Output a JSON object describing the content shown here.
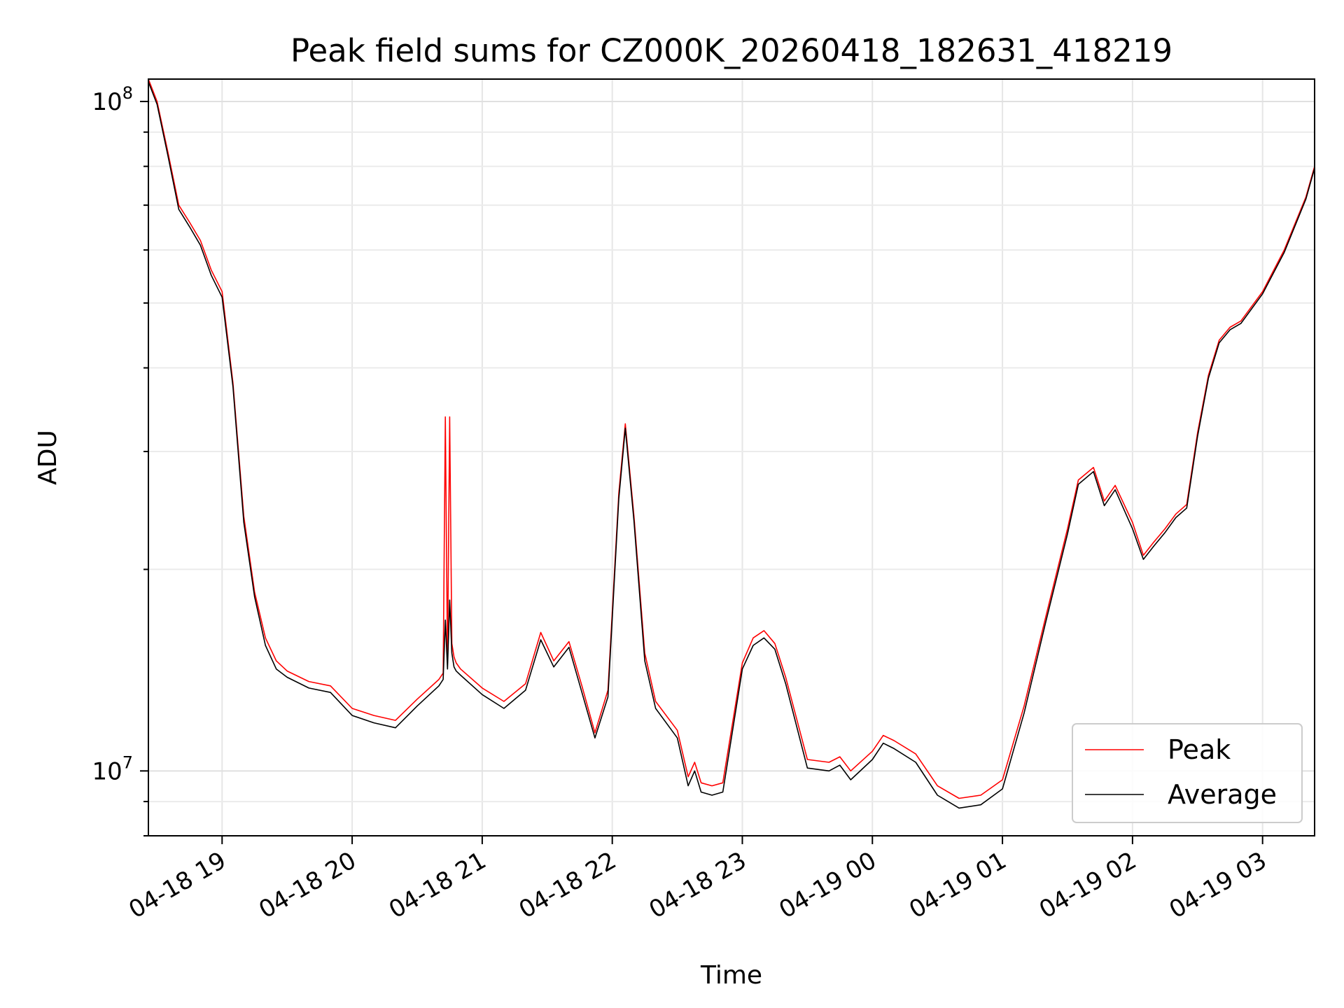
{
  "chart_data": {
    "type": "line",
    "title": "Peak field sums for CZ000K_20260418_182631_418219",
    "xlabel": "Time",
    "ylabel": "ADU",
    "y_scale": "log",
    "ylim": [
      8000000,
      108000000
    ],
    "xlim": [
      "2026-04-18 18:26",
      "2026-04-19 03:24"
    ],
    "x_ticks": [
      "04-18 19",
      "04-18 20",
      "04-18 21",
      "04-18 22",
      "04-18 23",
      "04-19 00",
      "04-19 01",
      "04-19 02",
      "04-19 03"
    ],
    "y_ticks": [
      "10^8",
      "10^7"
    ],
    "grid": true,
    "legend_position": "lower-right",
    "x": [
      "2026-04-18 18:26",
      "2026-04-18 18:30",
      "2026-04-18 18:35",
      "2026-04-18 18:40",
      "2026-04-18 18:45",
      "2026-04-18 18:50",
      "2026-04-18 18:55",
      "2026-04-18 19:00",
      "2026-04-18 19:05",
      "2026-04-18 19:10",
      "2026-04-18 19:15",
      "2026-04-18 19:20",
      "2026-04-18 19:25",
      "2026-04-18 19:30",
      "2026-04-18 19:40",
      "2026-04-18 19:50",
      "2026-04-18 20:00",
      "2026-04-18 20:10",
      "2026-04-18 20:20",
      "2026-04-18 20:30",
      "2026-04-18 20:40",
      "2026-04-18 20:42",
      "2026-04-18 20:43",
      "2026-04-18 20:44",
      "2026-04-18 20:45",
      "2026-04-18 20:46",
      "2026-04-18 20:47",
      "2026-04-18 20:48",
      "2026-04-18 20:50",
      "2026-04-18 21:00",
      "2026-04-18 21:10",
      "2026-04-18 21:20",
      "2026-04-18 21:27",
      "2026-04-18 21:33",
      "2026-04-18 21:40",
      "2026-04-18 21:46",
      "2026-04-18 21:52",
      "2026-04-18 21:58",
      "2026-04-18 22:03",
      "2026-04-18 22:06",
      "2026-04-18 22:10",
      "2026-04-18 22:15",
      "2026-04-18 22:20",
      "2026-04-18 22:30",
      "2026-04-18 22:35",
      "2026-04-18 22:38",
      "2026-04-18 22:41",
      "2026-04-18 22:46",
      "2026-04-18 22:51",
      "2026-04-18 23:00",
      "2026-04-18 23:05",
      "2026-04-18 23:10",
      "2026-04-18 23:15",
      "2026-04-18 23:20",
      "2026-04-18 23:30",
      "2026-04-18 23:40",
      "2026-04-18 23:45",
      "2026-04-18 23:50",
      "2026-04-19 00:00",
      "2026-04-19 00:05",
      "2026-04-19 00:10",
      "2026-04-19 00:20",
      "2026-04-19 00:30",
      "2026-04-19 00:40",
      "2026-04-19 00:50",
      "2026-04-19 01:00",
      "2026-04-19 01:10",
      "2026-04-19 01:20",
      "2026-04-19 01:30",
      "2026-04-19 01:35",
      "2026-04-19 01:42",
      "2026-04-19 01:47",
      "2026-04-19 01:52",
      "2026-04-19 02:00",
      "2026-04-19 02:05",
      "2026-04-19 02:10",
      "2026-04-19 02:15",
      "2026-04-19 02:20",
      "2026-04-19 02:25",
      "2026-04-19 02:30",
      "2026-04-19 02:35",
      "2026-04-19 02:40",
      "2026-04-19 02:45",
      "2026-04-19 02:50",
      "2026-04-19 03:00",
      "2026-04-19 03:10",
      "2026-04-19 03:20",
      "2026-04-19 03:24"
    ],
    "series": [
      {
        "name": "Peak",
        "color": "#ff0000",
        "values": [
          108000000,
          100000000,
          84000000,
          70000000,
          66000000,
          62000000,
          56000000,
          52000000,
          38000000,
          24000000,
          18500000,
          15800000,
          14600000,
          14100000,
          13600000,
          13400000,
          12400000,
          12100000,
          11900000,
          12800000,
          13700000,
          14000000,
          33800000,
          14500000,
          33800000,
          15500000,
          14800000,
          14500000,
          14200000,
          13300000,
          12700000,
          13500000,
          16100000,
          14600000,
          15600000,
          13400000,
          11400000,
          13200000,
          26000000,
          33000000,
          24000000,
          15000000,
          12700000,
          11500000,
          9800000,
          10300000,
          9600000,
          9500000,
          9600000,
          14500000,
          15800000,
          16200000,
          15500000,
          13800000,
          10400000,
          10300000,
          10500000,
          10000000,
          10700000,
          11300000,
          11100000,
          10600000,
          9500000,
          9100000,
          9200000,
          9700000,
          12500000,
          17000000,
          23000000,
          27200000,
          28400000,
          25300000,
          26700000,
          23500000,
          21000000,
          22000000,
          23000000,
          24200000,
          25000000,
          32000000,
          39000000,
          44000000,
          46000000,
          47000000,
          52000000,
          60000000,
          72000000,
          80000000
        ]
      },
      {
        "name": "Average",
        "color": "#000000",
        "values": [
          107000000,
          99000000,
          83000000,
          69000000,
          65000000,
          61000000,
          55000000,
          51000000,
          37500000,
          23500000,
          18200000,
          15400000,
          14200000,
          13800000,
          13300000,
          13100000,
          12100000,
          11800000,
          11600000,
          12500000,
          13400000,
          13700000,
          16800000,
          14200000,
          18000000,
          15000000,
          14300000,
          14100000,
          13900000,
          13000000,
          12400000,
          13200000,
          15700000,
          14300000,
          15300000,
          13100000,
          11200000,
          12900000,
          25500000,
          32500000,
          23600000,
          14600000,
          12400000,
          11200000,
          9500000,
          10000000,
          9300000,
          9200000,
          9300000,
          14200000,
          15400000,
          15800000,
          15200000,
          13500000,
          10100000,
          10000000,
          10200000,
          9700000,
          10400000,
          11000000,
          10800000,
          10300000,
          9200000,
          8800000,
          8900000,
          9400000,
          12200000,
          16700000,
          22600000,
          26800000,
          28000000,
          24900000,
          26300000,
          23000000,
          20700000,
          21700000,
          22700000,
          23900000,
          24700000,
          31600000,
          38600000,
          43600000,
          45600000,
          46600000,
          51600000,
          59500000,
          71500000,
          79500000
        ]
      }
    ]
  }
}
